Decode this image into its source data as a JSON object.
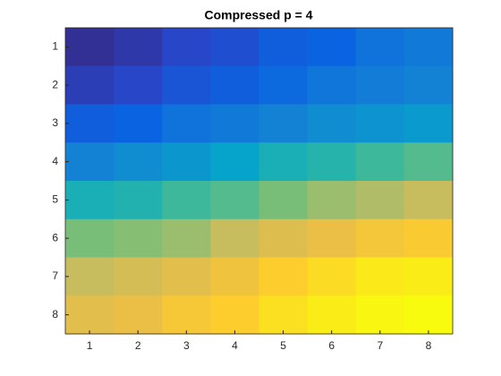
{
  "chart_data": {
    "type": "heatmap",
    "title": "Compressed p = 4",
    "values": [
      [
        0.02,
        0.05,
        0.1,
        0.13,
        0.18,
        0.2,
        0.25,
        0.27
      ],
      [
        0.07,
        0.1,
        0.15,
        0.18,
        0.22,
        0.26,
        0.28,
        0.3
      ],
      [
        0.18,
        0.2,
        0.25,
        0.27,
        0.3,
        0.33,
        0.35,
        0.37
      ],
      [
        0.3,
        0.33,
        0.36,
        0.4,
        0.45,
        0.48,
        0.52,
        0.55
      ],
      [
        0.45,
        0.47,
        0.52,
        0.55,
        0.6,
        0.65,
        0.68,
        0.72
      ],
      [
        0.6,
        0.62,
        0.65,
        0.72,
        0.77,
        0.8,
        0.85,
        0.88
      ],
      [
        0.72,
        0.75,
        0.78,
        0.83,
        0.9,
        0.93,
        0.96,
        0.97
      ],
      [
        0.78,
        0.8,
        0.86,
        0.9,
        0.94,
        0.97,
        0.99,
        1.0
      ]
    ],
    "colormap": "parula",
    "clim": [
      0,
      1
    ],
    "xlim": [
      0.5,
      8.5
    ],
    "xticks": [
      1,
      2,
      3,
      4,
      5,
      6,
      7,
      8
    ],
    "ylim": [
      0.5,
      8.5
    ],
    "yticks": [
      1,
      2,
      3,
      4,
      5,
      6,
      7,
      8
    ],
    "y_reversed": true
  }
}
